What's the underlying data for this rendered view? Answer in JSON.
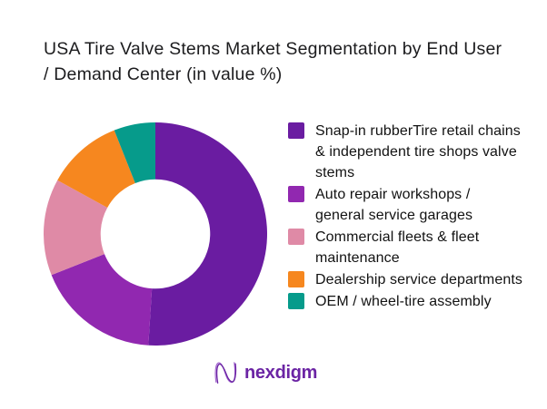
{
  "title_lines": [
    "USA Tire Valve Stems Market Segmentation by End User",
    "/ Demand Center (in value %)"
  ],
  "logo": {
    "text": "nexdigm",
    "color": "#6b24a4"
  },
  "chart_data": {
    "type": "pie",
    "subtype": "donut",
    "title": "USA Tire Valve Stems Market Segmentation by End User / Demand Center (in value %)",
    "unit": "percent of value",
    "categories": [
      "Snap-in rubberTire retail chains & independent tire shops valve stems",
      "Auto repair workshops / general service garages",
      "Commercial fleets & fleet maintenance",
      "Dealership service departments",
      "OEM / wheel-tire assembly"
    ],
    "values": [
      51,
      18,
      14,
      11,
      6
    ],
    "colors": [
      "#6a1ca1",
      "#9128b0",
      "#df8aa6",
      "#f6871f",
      "#069b8b"
    ],
    "start_angle_deg": 0,
    "direction": "clockwise",
    "inner_radius_ratio": 0.49,
    "legend_position": "right",
    "data_labels": false
  }
}
